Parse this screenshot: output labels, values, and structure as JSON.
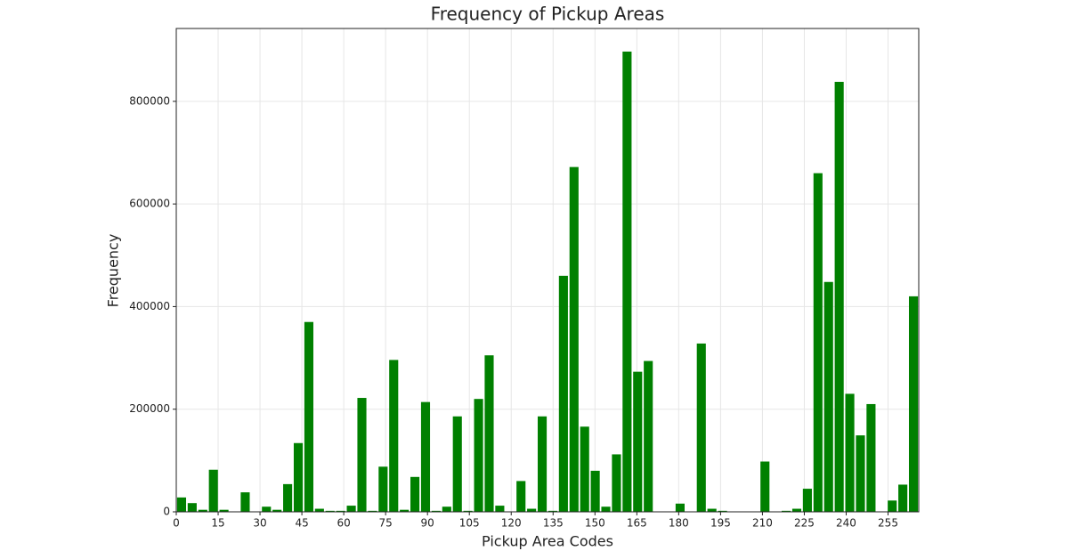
{
  "chart_data": {
    "type": "histogram",
    "title": "Frequency of Pickup Areas",
    "x_label": "Pickup Area Codes",
    "y_label": "Frequency",
    "color": "#008000",
    "bins": [
      0,
      3.8,
      7.6,
      11.4,
      15.2,
      19,
      22.8,
      26.6,
      30.4,
      34.2,
      38,
      41.8,
      45.6,
      49.4,
      53.2,
      57,
      60.8,
      64.6,
      68.4,
      72.2,
      76,
      79.8,
      83.6,
      87.4,
      91.2,
      95,
      98.8,
      102.6,
      106.4,
      110.2,
      114,
      117.8,
      121.6,
      125.4,
      129.2,
      133,
      136.8,
      140.6,
      144.4,
      148.2,
      152,
      155.8,
      159.6,
      163.4,
      167.2,
      171,
      174.8,
      178.6,
      182.4,
      186.2,
      190,
      193.8,
      197.6,
      201.4,
      205.2,
      209,
      212.8,
      216.6,
      220.4,
      224.2,
      228,
      231.8,
      235.6,
      239.4,
      243.2,
      247,
      250.8,
      254.6,
      258.4,
      262.2,
      266
    ],
    "values": [
      28000,
      17000,
      4000,
      82000,
      4000,
      0,
      38000,
      0,
      10000,
      4000,
      54000,
      134000,
      370000,
      6000,
      2000,
      2000,
      12000,
      222000,
      2000,
      88000,
      296000,
      4000,
      68000,
      214000,
      2000,
      10000,
      186000,
      2000,
      220000,
      305000,
      12000,
      0,
      60000,
      6000,
      186000,
      2000,
      460000,
      672000,
      166000,
      80000,
      10000,
      112000,
      897000,
      273000,
      294000,
      0,
      0,
      16000,
      0,
      328000,
      6000,
      2000,
      0,
      0,
      0,
      98000,
      0,
      2000,
      6000,
      45000,
      660000,
      448000,
      838000,
      230000,
      149000,
      210000,
      0,
      22000,
      53000,
      420000
    ],
    "xlim": [
      0,
      266
    ],
    "ylim": [
      0,
      942000
    ],
    "xticks": [
      0,
      15,
      30,
      45,
      60,
      75,
      90,
      105,
      120,
      135,
      150,
      165,
      180,
      195,
      210,
      225,
      240,
      255
    ],
    "yticks": [
      0,
      200000,
      400000,
      600000,
      800000
    ],
    "grid": true
  }
}
